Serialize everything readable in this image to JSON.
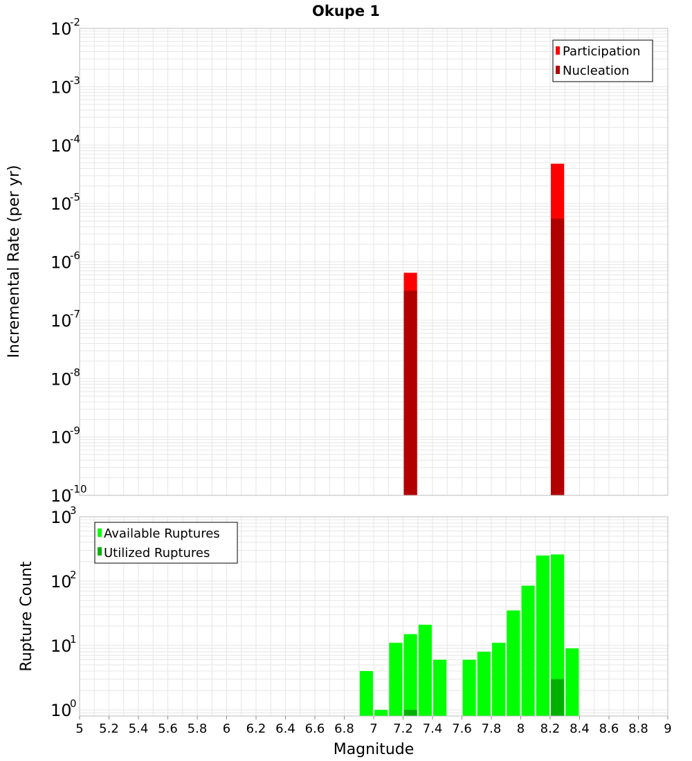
{
  "title": "Okupe 1",
  "colors": {
    "participation": "#ff0000",
    "nucleation": "#b00000",
    "available": "#00ff00",
    "utilized": "#00b000",
    "grid": "#e6e6e6",
    "frame": "#bbbbbb"
  },
  "chart_data": [
    {
      "type": "bar",
      "ylabel": "Incremental Rate (per yr)",
      "yscale": "log",
      "ylim": [
        1e-10,
        0.01
      ],
      "xlim": [
        5,
        9
      ],
      "y_tick_exponents": [
        "-10",
        "-9",
        "-8",
        "-7",
        "-6",
        "-5",
        "-4",
        "-3",
        "-2"
      ],
      "legend_position": "top-right",
      "bar_width": 0.09,
      "series": [
        {
          "name": "Participation",
          "color": "#ff0000",
          "x": [
            7.25,
            8.25
          ],
          "values": [
            6.5e-07,
            4.8e-05
          ]
        },
        {
          "name": "Nucleation",
          "color": "#b00000",
          "x": [
            7.25,
            8.25
          ],
          "values": [
            3.2e-07,
            5.5e-06
          ]
        }
      ]
    },
    {
      "type": "bar",
      "xlabel": "Magnitude",
      "ylabel": "Rupture Count",
      "yscale": "log",
      "ylim": [
        0.8,
        1000
      ],
      "xlim": [
        5,
        9
      ],
      "y_tick_exponents": [
        "0",
        "1",
        "2",
        "3"
      ],
      "x_ticks": [
        "5",
        "5.2",
        "5.4",
        "5.6",
        "5.8",
        "6",
        "6.2",
        "6.4",
        "6.6",
        "6.8",
        "7",
        "7.2",
        "7.4",
        "7.6",
        "7.8",
        "8",
        "8.2",
        "8.4",
        "8.6",
        "8.8",
        "9"
      ],
      "legend_position": "top-left",
      "bar_width": 0.09,
      "series": [
        {
          "name": "Available Ruptures",
          "color": "#00ff00",
          "x": [
            6.95,
            7.05,
            7.15,
            7.25,
            7.35,
            7.45,
            7.65,
            7.75,
            7.85,
            7.95,
            8.05,
            8.15,
            8.25,
            8.35
          ],
          "values": [
            4,
            1,
            11,
            15,
            21,
            6,
            6,
            8,
            11,
            35,
            85,
            250,
            260,
            9
          ]
        },
        {
          "name": "Utilized Ruptures",
          "color": "#00b000",
          "x": [
            7.25,
            8.25
          ],
          "values": [
            1,
            3
          ]
        }
      ]
    }
  ]
}
